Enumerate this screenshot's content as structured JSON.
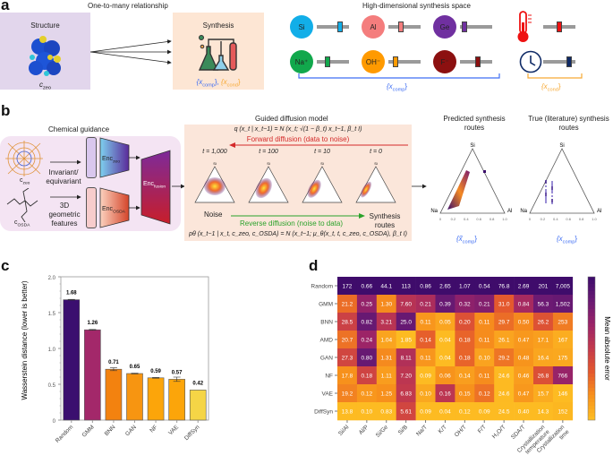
{
  "panel_a": {
    "label": "a",
    "title": "One-to-many relationship",
    "structure_title": "Structure",
    "structure_var": "c",
    "structure_sub": "zeo",
    "synthesis_title": "Synthesis",
    "synthesis_vars": {
      "comp": "{x",
      "comp_sub": "comp",
      "sep": "}, ",
      "cond": "{x",
      "cond_sub": "cond",
      "end": "}"
    },
    "space_title": "High-dimensional synthesis space",
    "species": [
      {
        "label": "Si",
        "color": "#12aee8",
        "knob": 0.78
      },
      {
        "label": "Al",
        "color": "#f47d7d",
        "knob": 0.35
      },
      {
        "label": "Ge",
        "color": "#7030a0",
        "knob": 0.05
      },
      {
        "label": "Na⁺",
        "color": "#11a84c",
        "knob": 0.3
      },
      {
        "label": "OH⁻",
        "color": "#ff9a00",
        "knob": 0.15
      },
      {
        "label": "F⁻",
        "color": "#8c1010",
        "knob": 0.55
      }
    ],
    "conditions": [
      {
        "icon": "thermometer-icon",
        "color": "#ee1111",
        "knob": 0.5
      },
      {
        "icon": "clock-icon",
        "color": "#0f2a66",
        "knob": 0.85
      }
    ],
    "comp_label": "{x",
    "comp_label_sub": "comp",
    "cond_label": "{x",
    "cond_label_sub": "cond",
    "close": "}"
  },
  "panel_b": {
    "label": "b",
    "chemical_guidance": "Chemical guidance",
    "c_zeo": "c",
    "c_zeo_sub": "zeo",
    "c_osda": "c",
    "c_osda_sub": "OSDA",
    "invariant": "Invariant/ equivariant",
    "geometric": "3D geometric features",
    "enc": "Enc",
    "enc_zeo_sub": "zeo",
    "enc_osda_sub": "OSDA",
    "enc_fusion_sub": "fusion",
    "diffusion_title": "Guided diffusion model",
    "forward_eq": "q (x_t | x_t−1) = N (x_t; √(1 − β_t) x_t−1, β_t I)",
    "forward_label": "Forward diffusion (data to noise)",
    "reverse_label": "Reverse diffusion (noise to data)",
    "reverse_eq": "pθ (x_t−1 | x_t, c_zeo, c_OSDA) = N (x_t−1; μ_θ(x_t, t, c_zeo, c_OSDA), β_t I)",
    "timesteps": [
      "t = 1,000",
      "t = 100",
      "t = 10",
      "t = 0"
    ],
    "noise_label": "Noise",
    "routes_label": "Synthesis routes",
    "predicted_title": "Predicted synthesis routes",
    "true_title": "True (literature) synthesis routes",
    "predicted_var": "{x̃",
    "predicted_sub": "comp",
    "true_var": "{x",
    "true_sub": "comp",
    "vertex_si": "Si",
    "vertex_na": "Na",
    "vertex_al": "Al",
    "ternary_ticks": [
      "0",
      "0.2",
      "0.4",
      "0.6",
      "0.8",
      "1.0"
    ]
  },
  "chart_data": [
    {
      "panel": "c",
      "type": "bar",
      "title": "",
      "xlabel": "",
      "ylabel": "Wasserstein distance (lower is better)",
      "ylim": [
        0,
        2.0
      ],
      "yticks": [
        "0",
        "0.5",
        "1.0",
        "1.5",
        "2.0"
      ],
      "categories": [
        "Random",
        "GMM",
        "BNN",
        "GAN",
        "NF",
        "VAE",
        "DiffSyn"
      ],
      "values": [
        1.68,
        1.26,
        0.71,
        0.65,
        0.59,
        0.57,
        0.42
      ],
      "labels": [
        "1.68",
        "1.26",
        "0.71",
        "0.65",
        "0.59",
        "0.57",
        "0.42"
      ],
      "errors": [
        0.005,
        0.005,
        0.02,
        0.005,
        0.005,
        0.03,
        0.0
      ],
      "colors": [
        "#3b0f6f",
        "#a3286a",
        "#f3820f",
        "#f79511",
        "#fca50a",
        "#fca50a",
        "#f5d546"
      ]
    },
    {
      "panel": "d",
      "type": "heatmap",
      "colorbar_label": "Mean absolute error",
      "rows": [
        "Random",
        "GMM",
        "BNN",
        "AMD",
        "GAN",
        "NF",
        "VAE",
        "DiffSyn"
      ],
      "columns": [
        "Si/Al",
        "Al/P",
        "Si/Ge",
        "Si/B",
        "Na/T",
        "K/T",
        "OH/T",
        "F/T",
        "H₂O/T",
        "SDA/T",
        "Crystallization temperature",
        "Crystallization time"
      ],
      "values": [
        [
          "172",
          "0.66",
          "44.1",
          "113",
          "0.86",
          "2.65",
          "1.07",
          "0.54",
          "76.8",
          "2.69",
          "201",
          "7,005"
        ],
        [
          "21.2",
          "0.25",
          "1.30",
          "7.60",
          "0.21",
          "0.39",
          "0.32",
          "0.21",
          "31.0",
          "0.84",
          "56.3",
          "1,502"
        ],
        [
          "28.5",
          "0.82",
          "3.21",
          "25.0",
          "0.11",
          "0.05",
          "0.20",
          "0.11",
          "29.7",
          "0.50",
          "26.2",
          "253"
        ],
        [
          "20.7",
          "0.24",
          "1.04",
          "1.85",
          "0.14",
          "0.04",
          "0.18",
          "0.11",
          "26.1",
          "0.47",
          "17.1",
          "167"
        ],
        [
          "27.3",
          "0.80",
          "1.31",
          "8.11",
          "0.11",
          "0.04",
          "0.18",
          "0.10",
          "29.2",
          "0.48",
          "16.4",
          "175"
        ],
        [
          "17.8",
          "0.18",
          "1.11",
          "7.20",
          "0.09",
          "0.06",
          "0.14",
          "0.11",
          "24.6",
          "0.46",
          "26.8",
          "766"
        ],
        [
          "19.2",
          "0.12",
          "1.25",
          "6.83",
          "0.10",
          "0.16",
          "0.15",
          "0.12",
          "24.6",
          "0.47",
          "15.7",
          "146"
        ],
        [
          "13.8",
          "0.10",
          "0.83",
          "5.61",
          "0.09",
          "0.04",
          "0.12",
          "0.09",
          "24.5",
          "0.40",
          "14.3",
          "152"
        ]
      ],
      "colormap": [
        "#fdbb22",
        "#f7901c",
        "#e4582e",
        "#c33a4c",
        "#9c2467",
        "#6b1a73",
        "#3f0c6b"
      ]
    }
  ]
}
